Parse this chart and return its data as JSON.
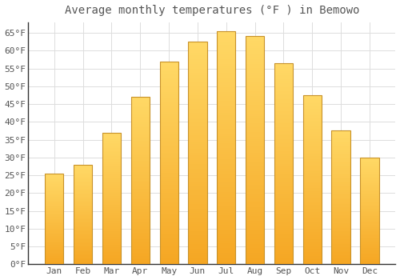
{
  "title": "Average monthly temperatures (°F ) in Bemowo",
  "months": [
    "Jan",
    "Feb",
    "Mar",
    "Apr",
    "May",
    "Jun",
    "Jul",
    "Aug",
    "Sep",
    "Oct",
    "Nov",
    "Dec"
  ],
  "values": [
    25.5,
    28.0,
    37.0,
    47.0,
    57.0,
    62.5,
    65.5,
    64.0,
    56.5,
    47.5,
    37.5,
    30.0
  ],
  "bar_color_bottom": "#F5A623",
  "bar_color_top": "#FFD966",
  "bar_edge_color": "#C8922A",
  "background_color": "#ffffff",
  "plot_bg_color": "#ffffff",
  "grid_color": "#dddddd",
  "text_color": "#555555",
  "ylim": [
    0,
    68
  ],
  "yticks": [
    0,
    5,
    10,
    15,
    20,
    25,
    30,
    35,
    40,
    45,
    50,
    55,
    60,
    65
  ],
  "title_fontsize": 10,
  "tick_fontsize": 8,
  "font_family": "monospace",
  "bar_width": 0.65
}
